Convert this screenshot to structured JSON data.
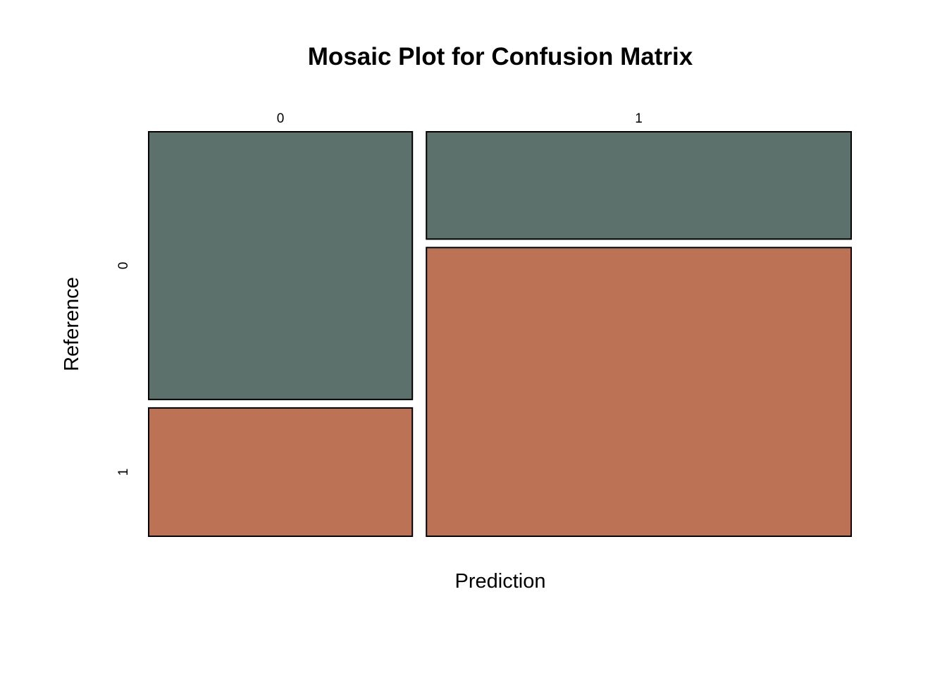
{
  "chart_data": {
    "type": "mosaic",
    "title": "Mosaic Plot for Confusion Matrix",
    "xlabel": "Prediction",
    "ylabel": "Reference",
    "x_categories": [
      "0",
      "1"
    ],
    "y_categories": [
      "0",
      "1"
    ],
    "x_proportions": [
      0.383,
      0.617
    ],
    "cells": [
      {
        "prediction": "0",
        "reference": "0",
        "share_within_prediction": 0.676
      },
      {
        "prediction": "0",
        "reference": "1",
        "share_within_prediction": 0.324
      },
      {
        "prediction": "1",
        "reference": "0",
        "share_within_prediction": 0.271
      },
      {
        "prediction": "1",
        "reference": "1",
        "share_within_prediction": 0.729
      }
    ],
    "colors": {
      "0": "#5C706C",
      "1": "#BB7255"
    },
    "grid": false,
    "legend": "none"
  }
}
